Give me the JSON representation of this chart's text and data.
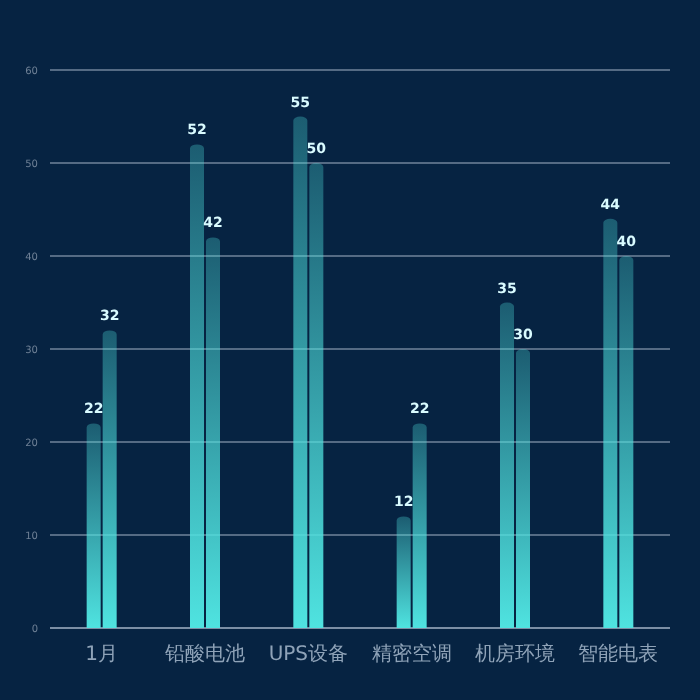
{
  "chart_data": {
    "type": "bar",
    "categories": [
      "1月",
      "铅酸电池",
      "UPS设备",
      "精密空调",
      "机房环境",
      "智能电表"
    ],
    "series": [
      {
        "color": "#4fe3e0",
        "values": [
          22,
          52,
          55,
          12,
          35,
          44
        ]
      },
      {
        "color": "#4fe3e0",
        "values": [
          32,
          42,
          50,
          22,
          30,
          40
        ]
      }
    ],
    "ylim": [
      0,
      60
    ],
    "yticks": [
      0,
      10,
      20,
      30,
      40,
      50,
      60
    ],
    "grid": "y",
    "data_labels": true
  }
}
